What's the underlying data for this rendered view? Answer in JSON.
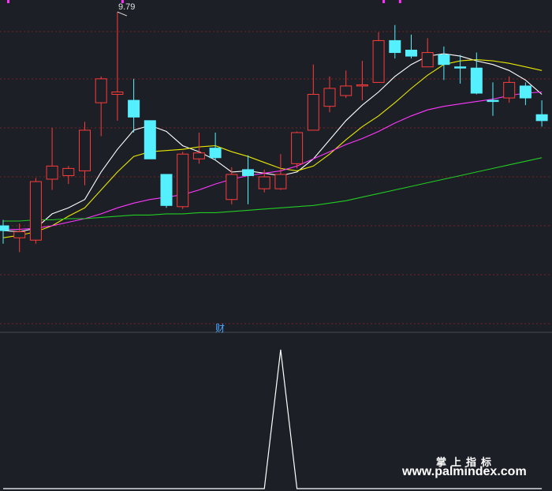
{
  "annotations": {
    "max_price_label": "9.79"
  },
  "sub_chart": {
    "title": "财"
  },
  "watermark": {
    "text_cn": "掌上指标",
    "url": "www.palmindex.com"
  },
  "colors": {
    "background": "#1c1f26",
    "up_candle": "#ff3b3b",
    "down_candle": "#54f0ff",
    "ma_white": "#ffffff",
    "ma_yellow": "#e8e800",
    "ma_magenta": "#ff38ff",
    "ma_green": "#22cc22",
    "grid": "#7a2020",
    "marker": "#ff30ff"
  },
  "chart_data": {
    "type": "candlestick",
    "y_range": [
      7.3,
      9.85
    ],
    "candles": [
      {
        "o": 8.0,
        "c": 7.96,
        "h": 8.05,
        "l": 7.85
      },
      {
        "o": 7.9,
        "c": 7.95,
        "h": 8.02,
        "l": 7.78
      },
      {
        "o": 7.88,
        "c": 8.37,
        "h": 8.4,
        "l": 7.85
      },
      {
        "o": 8.39,
        "c": 8.5,
        "h": 8.82,
        "l": 8.3
      },
      {
        "o": 8.42,
        "c": 8.48,
        "h": 8.5,
        "l": 8.35
      },
      {
        "o": 8.46,
        "c": 8.8,
        "h": 8.87,
        "l": 8.34
      },
      {
        "o": 9.03,
        "c": 9.23,
        "h": 9.25,
        "l": 8.75
      },
      {
        "o": 9.1,
        "c": 9.12,
        "h": 9.79,
        "l": 8.88
      },
      {
        "o": 9.05,
        "c": 8.91,
        "h": 9.23,
        "l": 8.78
      },
      {
        "o": 8.88,
        "c": 8.56,
        "h": 8.88,
        "l": 8.56
      },
      {
        "o": 8.43,
        "c": 8.17,
        "h": 8.43,
        "l": 8.15
      },
      {
        "o": 8.16,
        "c": 8.6,
        "h": 8.62,
        "l": 8.14
      },
      {
        "o": 8.56,
        "c": 8.61,
        "h": 8.78,
        "l": 8.52
      },
      {
        "o": 8.65,
        "c": 8.57,
        "h": 8.78,
        "l": 8.55
      },
      {
        "o": 8.22,
        "c": 8.43,
        "h": 8.49,
        "l": 8.18
      },
      {
        "o": 8.47,
        "c": 8.42,
        "h": 8.59,
        "l": 8.18
      },
      {
        "o": 8.31,
        "c": 8.41,
        "h": 8.47,
        "l": 8.28
      },
      {
        "o": 8.31,
        "c": 8.43,
        "h": 8.6,
        "l": 8.3
      },
      {
        "o": 8.52,
        "c": 8.78,
        "h": 8.79,
        "l": 8.48
      },
      {
        "o": 8.8,
        "c": 9.1,
        "h": 9.35,
        "l": 8.8
      },
      {
        "o": 9.0,
        "c": 9.15,
        "h": 9.25,
        "l": 8.95
      },
      {
        "o": 9.09,
        "c": 9.17,
        "h": 9.3,
        "l": 9.07
      },
      {
        "o": 9.17,
        "c": 9.18,
        "h": 9.38,
        "l": 9.05
      },
      {
        "o": 9.2,
        "c": 9.55,
        "h": 9.62,
        "l": 9.2
      },
      {
        "o": 9.55,
        "c": 9.45,
        "h": 9.68,
        "l": 9.4
      },
      {
        "o": 9.47,
        "c": 9.42,
        "h": 9.6,
        "l": 9.4
      },
      {
        "o": 9.33,
        "c": 9.45,
        "h": 9.57,
        "l": 9.33
      },
      {
        "o": 9.43,
        "c": 9.35,
        "h": 9.5,
        "l": 9.22
      },
      {
        "o": 9.33,
        "c": 9.32,
        "h": 9.43,
        "l": 9.19
      },
      {
        "o": 9.32,
        "c": 9.11,
        "h": 9.45,
        "l": 9.1
      },
      {
        "o": 9.05,
        "c": 9.04,
        "h": 9.2,
        "l": 8.92
      },
      {
        "o": 9.07,
        "c": 9.2,
        "h": 9.25,
        "l": 9.03
      },
      {
        "o": 9.17,
        "c": 9.07,
        "h": 9.2,
        "l": 9.01
      },
      {
        "o": 8.93,
        "c": 8.88,
        "h": 9.05,
        "l": 8.83
      }
    ],
    "ma_series": [
      {
        "color": "white",
        "values": [
          7.96,
          7.95,
          7.98,
          8.1,
          8.15,
          8.22,
          8.45,
          8.64,
          8.8,
          8.84,
          8.79,
          8.67,
          8.62,
          8.55,
          8.45,
          8.46,
          8.44,
          8.42,
          8.45,
          8.56,
          8.72,
          8.88,
          9.01,
          9.12,
          9.25,
          9.35,
          9.42,
          9.44,
          9.42,
          9.38,
          9.35,
          9.3,
          9.22,
          9.1
        ]
      },
      {
        "color": "yellow",
        "values": [
          7.9,
          7.92,
          7.95,
          8.0,
          8.08,
          8.15,
          8.3,
          8.45,
          8.58,
          8.62,
          8.63,
          8.64,
          8.66,
          8.67,
          8.62,
          8.58,
          8.53,
          8.48,
          8.46,
          8.5,
          8.6,
          8.72,
          8.83,
          8.92,
          9.03,
          9.15,
          9.26,
          9.35,
          9.38,
          9.39,
          9.38,
          9.36,
          9.33,
          9.3
        ]
      },
      {
        "color": "magenta",
        "values": [
          7.97,
          7.97,
          7.98,
          8.0,
          8.03,
          8.06,
          8.1,
          8.15,
          8.19,
          8.22,
          8.24,
          8.26,
          8.3,
          8.35,
          8.39,
          8.42,
          8.44,
          8.46,
          8.5,
          8.56,
          8.62,
          8.68,
          8.73,
          8.79,
          8.86,
          8.92,
          8.97,
          9.0,
          9.02,
          9.04,
          9.06,
          9.09,
          9.11,
          9.12
        ]
      },
      {
        "color": "green",
        "values": [
          8.04,
          8.04,
          8.05,
          8.05,
          8.06,
          8.06,
          8.07,
          8.08,
          8.09,
          8.09,
          8.1,
          8.1,
          8.11,
          8.11,
          8.12,
          8.13,
          8.14,
          8.15,
          8.16,
          8.17,
          8.19,
          8.21,
          8.24,
          8.27,
          8.3,
          8.33,
          8.36,
          8.39,
          8.42,
          8.45,
          8.48,
          8.51,
          8.54,
          8.57
        ]
      }
    ],
    "sub_indicator": {
      "values": [
        0,
        0,
        0,
        0,
        0,
        0,
        0,
        0,
        0,
        0,
        0,
        0,
        0,
        0,
        0,
        0,
        0,
        1,
        0,
        0,
        0,
        0,
        0,
        0,
        0,
        0,
        0,
        0,
        0,
        0,
        0,
        0,
        0,
        0
      ]
    },
    "top_markers_at_index": [
      0,
      7,
      23,
      24
    ]
  }
}
